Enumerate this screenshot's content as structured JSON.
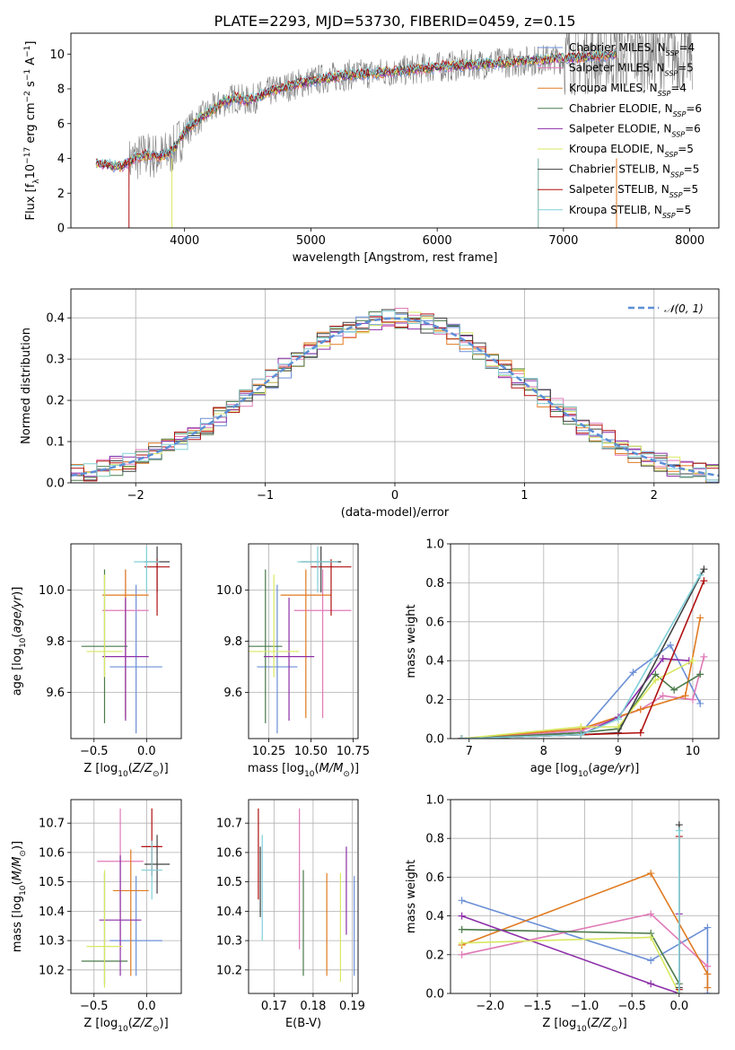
{
  "title": "PLATE=2293, MJD=53730, FIBERID=0459, z=0.15",
  "colors": {
    "chabrier_miles": "#6b8fd6",
    "salpeter_miles": "#e07ab8",
    "kroupa_miles": "#e07a20",
    "chabrier_elodie": "#4a7a4a",
    "salpeter_elodie": "#8c2fa8",
    "kroupa_elodie": "#d8e860",
    "chabrier_stelib": "#404040",
    "salpeter_stelib": "#b01010",
    "kroupa_stelib": "#80d0d8",
    "normal": "#5b8fd6",
    "observed": "#808080"
  },
  "chart_data": [
    {
      "id": "spectrum",
      "type": "line",
      "title": "PLATE=2293, MJD=53730, FIBERID=0459, z=0.15",
      "xlabel": "wavelength [Angstrom, rest frame]",
      "ylabel": "Flux [f_λ10^-17 erg cm^-2 s^-1 A^-1]",
      "xlim": [
        3100,
        8230
      ],
      "ylim": [
        0,
        11.2
      ],
      "xticks": [
        4000,
        5000,
        6000,
        7000,
        8000
      ],
      "yticks": [
        0,
        2,
        4,
        6,
        8,
        10
      ],
      "grid": false,
      "legend_position": "top-right",
      "model_points": {
        "x": [
          3300,
          3400,
          3500,
          3600,
          3700,
          3800,
          3900,
          4000,
          4100,
          4200,
          4300,
          4400,
          4500,
          4700,
          4900,
          5100,
          5300,
          5500,
          5700,
          5900,
          6100,
          6300,
          6500,
          6700,
          6900,
          7100,
          7300,
          7420
        ],
        "y": [
          3.7,
          3.6,
          3.5,
          4.0,
          4.2,
          4.1,
          4.4,
          5.5,
          6.2,
          6.7,
          7.2,
          7.5,
          7.3,
          7.9,
          8.3,
          8.6,
          8.8,
          8.9,
          9.0,
          9.2,
          9.3,
          9.4,
          9.5,
          9.6,
          9.7,
          9.8,
          9.9,
          10.0
        ]
      },
      "observed_range": {
        "x": [
          3560,
          8020
        ]
      },
      "series": [
        {
          "name": "Chabrier MILES, N_SSP=4",
          "key": "chabrier_miles"
        },
        {
          "name": "Salpeter MILES, N_SSP=5",
          "key": "salpeter_miles"
        },
        {
          "name": "Kroupa MILES, N_SSP=4",
          "key": "kroupa_miles"
        },
        {
          "name": "Chabrier ELODIE, N_SSP=6",
          "key": "chabrier_elodie"
        },
        {
          "name": "Salpeter ELODIE, N_SSP=6",
          "key": "salpeter_elodie"
        },
        {
          "name": "Kroupa ELODIE, N_SSP=5",
          "key": "kroupa_elodie"
        },
        {
          "name": "Chabrier STELIB, N_SSP=5",
          "key": "chabrier_stelib"
        },
        {
          "name": "Salpeter STELIB, N_SSP=5",
          "key": "salpeter_stelib"
        },
        {
          "name": "Kroupa STELIB, N_SSP=5",
          "key": "kroupa_stelib"
        }
      ]
    },
    {
      "id": "residuals",
      "type": "line",
      "xlabel": "(data-model)/error",
      "ylabel": "Normed distribution",
      "xlim": [
        -2.5,
        2.5
      ],
      "ylim": [
        0,
        0.47
      ],
      "xticks": [
        -2,
        -1,
        0,
        1,
        2
      ],
      "yticks": [
        0.0,
        0.1,
        0.2,
        0.3,
        0.4
      ],
      "grid": true,
      "legend_position": "top-right",
      "legend_label": "𝒩(0, 1)",
      "histogram_bin_width": 0.1
    },
    {
      "id": "age_vs_Z",
      "type": "scatter",
      "xlabel": "Z [log10(Z/Z⊙)]",
      "ylabel": "age  [log10(age/yr)]",
      "xlim": [
        -0.72,
        0.33
      ],
      "ylim": [
        9.42,
        10.18
      ],
      "xticks": [
        -0.5,
        0.0
      ],
      "yticks": [
        9.6,
        9.8,
        10.0
      ],
      "grid": true,
      "points": [
        {
          "key": "chabrier_miles",
          "x": -0.1,
          "xerr": [
            0.25,
            0.25
          ],
          "y": 9.7,
          "yerr": [
            0.26,
            0.32
          ]
        },
        {
          "key": "salpeter_miles",
          "x": -0.2,
          "xerr": [
            0.22,
            0.22
          ],
          "y": 9.92,
          "yerr": [
            0.42,
            0.16
          ]
        },
        {
          "key": "kroupa_miles",
          "x": -0.2,
          "xerr": [
            0.22,
            0.22
          ],
          "y": 9.98,
          "yerr": [
            0.48,
            0.1
          ]
        },
        {
          "key": "chabrier_elodie",
          "x": -0.4,
          "xerr": [
            0.22,
            0.22
          ],
          "y": 9.78,
          "yerr": [
            0.3,
            0.3
          ]
        },
        {
          "key": "salpeter_elodie",
          "x": -0.2,
          "xerr": [
            0.22,
            0.22
          ],
          "y": 9.74,
          "yerr": [
            0.25,
            0.23
          ]
        },
        {
          "key": "kroupa_elodie",
          "x": -0.4,
          "xerr": [
            0.17,
            0.17
          ],
          "y": 9.76,
          "yerr": [
            0.1,
            0.3
          ]
        },
        {
          "key": "chabrier_stelib",
          "x": 0.1,
          "xerr": [
            0.12,
            0.12
          ],
          "y": 10.11,
          "yerr": [
            0.12,
            0.06
          ]
        },
        {
          "key": "salpeter_stelib",
          "x": 0.1,
          "xerr": [
            0.12,
            0.12
          ],
          "y": 10.09,
          "yerr": [
            0.19,
            0.03
          ]
        },
        {
          "key": "kroupa_stelib",
          "x": 0.0,
          "xerr": [
            0.12,
            0.12
          ],
          "y": 10.11,
          "yerr": [
            0.12,
            0.06
          ]
        }
      ]
    },
    {
      "id": "age_vs_mass",
      "type": "scatter",
      "xlabel": "mass [log10(M/M⊙)]",
      "ylabel": "",
      "xlim": [
        10.13,
        10.78
      ],
      "ylim": [
        9.42,
        10.18
      ],
      "xticks": [
        10.25,
        10.5,
        10.75
      ],
      "yticks": [
        9.6,
        9.8,
        10.0
      ],
      "grid": true,
      "points": [
        {
          "key": "chabrier_miles",
          "x": 10.3,
          "xerr": [
            0.12,
            0.12
          ],
          "y": 9.7,
          "yerr": [
            0.26,
            0.32
          ]
        },
        {
          "key": "salpeter_miles",
          "x": 10.57,
          "xerr": [
            0.17,
            0.17
          ],
          "y": 9.92,
          "yerr": [
            0.42,
            0.16
          ]
        },
        {
          "key": "kroupa_miles",
          "x": 10.47,
          "xerr": [
            0.15,
            0.15
          ],
          "y": 9.98,
          "yerr": [
            0.48,
            0.1
          ]
        },
        {
          "key": "chabrier_elodie",
          "x": 10.23,
          "xerr": [
            0.1,
            0.1
          ],
          "y": 9.78,
          "yerr": [
            0.3,
            0.3
          ]
        },
        {
          "key": "salpeter_elodie",
          "x": 10.37,
          "xerr": [
            0.15,
            0.15
          ],
          "y": 9.74,
          "yerr": [
            0.25,
            0.23
          ]
        },
        {
          "key": "kroupa_elodie",
          "x": 10.28,
          "xerr": [
            0.15,
            0.15
          ],
          "y": 9.76,
          "yerr": [
            0.1,
            0.3
          ]
        },
        {
          "key": "chabrier_stelib",
          "x": 10.56,
          "xerr": [
            0.12,
            0.12
          ],
          "y": 10.11,
          "yerr": [
            0.12,
            0.06
          ]
        },
        {
          "key": "salpeter_stelib",
          "x": 10.62,
          "xerr": [
            0.12,
            0.12
          ],
          "y": 10.09,
          "yerr": [
            0.19,
            0.03
          ]
        },
        {
          "key": "kroupa_stelib",
          "x": 10.54,
          "xerr": [
            0.12,
            0.12
          ],
          "y": 10.11,
          "yerr": [
            0.12,
            0.06
          ]
        }
      ]
    },
    {
      "id": "weight_vs_age",
      "type": "line",
      "xlabel": "age  [log10(age/yr)]",
      "ylabel": "mass weight",
      "xlim": [
        6.75,
        10.35
      ],
      "ylim": [
        0,
        1.0
      ],
      "xticks": [
        7,
        8,
        9,
        10
      ],
      "yticks": [
        0.0,
        0.2,
        0.4,
        0.6,
        0.8,
        1.0
      ],
      "grid": true,
      "series": [
        {
          "key": "chabrier_miles",
          "x": [
            6.9,
            8.5,
            9.2,
            9.7,
            10.1
          ],
          "y": [
            0.0,
            0.03,
            0.34,
            0.48,
            0.18
          ]
        },
        {
          "key": "salpeter_miles",
          "x": [
            6.9,
            8.5,
            9.3,
            9.6,
            10.0,
            10.15
          ],
          "y": [
            0.0,
            0.04,
            0.15,
            0.22,
            0.2,
            0.42
          ]
        },
        {
          "key": "kroupa_miles",
          "x": [
            6.9,
            8.5,
            9.3,
            9.9,
            10.1
          ],
          "y": [
            0.0,
            0.05,
            0.15,
            0.22,
            0.62
          ]
        },
        {
          "key": "chabrier_elodie",
          "x": [
            6.9,
            8.5,
            9.0,
            9.5,
            9.75,
            10.1
          ],
          "y": [
            0.0,
            0.03,
            0.05,
            0.33,
            0.25,
            0.33
          ]
        },
        {
          "key": "salpeter_elodie",
          "x": [
            6.9,
            8.5,
            9.0,
            9.6,
            9.95
          ],
          "y": [
            0.0,
            0.02,
            0.11,
            0.41,
            0.4
          ]
        },
        {
          "key": "kroupa_elodie",
          "x": [
            6.9,
            8.5,
            9.0,
            9.5,
            10.0
          ],
          "y": [
            0.0,
            0.06,
            0.06,
            0.3,
            0.4
          ]
        },
        {
          "key": "chabrier_stelib",
          "x": [
            6.9,
            8.5,
            9.0,
            10.15
          ],
          "y": [
            0.0,
            0.02,
            0.03,
            0.87
          ]
        },
        {
          "key": "salpeter_stelib",
          "x": [
            6.9,
            8.5,
            9.3,
            10.15
          ],
          "y": [
            0.0,
            0.02,
            0.03,
            0.81
          ]
        },
        {
          "key": "kroupa_stelib",
          "x": [
            6.9,
            8.5,
            9.0,
            10.1
          ],
          "y": [
            0.0,
            0.02,
            0.1,
            0.84
          ]
        }
      ]
    },
    {
      "id": "mass_vs_Z",
      "type": "scatter",
      "xlabel": "Z [log10(Z/Z⊙)]",
      "ylabel": "mass [log10(M/M⊙)]",
      "xlim": [
        -0.72,
        0.33
      ],
      "ylim": [
        10.12,
        10.78
      ],
      "xticks": [
        -0.5,
        0.0
      ],
      "yticks": [
        10.2,
        10.3,
        10.4,
        10.5,
        10.6,
        10.7
      ],
      "grid": true,
      "points": [
        {
          "key": "chabrier_miles",
          "x": -0.1,
          "xerr": [
            0.25,
            0.25
          ],
          "y": 10.3,
          "yerr": [
            0.12,
            0.22
          ]
        },
        {
          "key": "salpeter_miles",
          "x": -0.25,
          "xerr": [
            0.22,
            0.22
          ],
          "y": 10.57,
          "yerr": [
            0.3,
            0.18
          ]
        },
        {
          "key": "kroupa_miles",
          "x": -0.15,
          "xerr": [
            0.17,
            0.17
          ],
          "y": 10.47,
          "yerr": [
            0.29,
            0.14
          ]
        },
        {
          "key": "chabrier_elodie",
          "x": -0.4,
          "xerr": [
            0.22,
            0.22
          ],
          "y": 10.23,
          "yerr": [
            0.08,
            0.3
          ]
        },
        {
          "key": "salpeter_elodie",
          "x": -0.25,
          "xerr": [
            0.2,
            0.2
          ],
          "y": 10.37,
          "yerr": [
            0.19,
            0.22
          ]
        },
        {
          "key": "kroupa_elodie",
          "x": -0.4,
          "xerr": [
            0.17,
            0.17
          ],
          "y": 10.28,
          "yerr": [
            0.14,
            0.26
          ]
        },
        {
          "key": "chabrier_stelib",
          "x": 0.1,
          "xerr": [
            0.12,
            0.12
          ],
          "y": 10.56,
          "yerr": [
            0.1,
            0.1
          ]
        },
        {
          "key": "salpeter_stelib",
          "x": 0.05,
          "xerr": [
            0.1,
            0.1
          ],
          "y": 10.62,
          "yerr": [
            0.1,
            0.13
          ]
        },
        {
          "key": "kroupa_stelib",
          "x": 0.05,
          "xerr": [
            0.1,
            0.1
          ],
          "y": 10.54,
          "yerr": [
            0.1,
            0.1
          ]
        }
      ]
    },
    {
      "id": "mass_vs_ebv",
      "type": "scatter",
      "xlabel": "E(B-V)",
      "ylabel": "",
      "xlim": [
        0.1635,
        0.1915
      ],
      "ylim": [
        10.12,
        10.78
      ],
      "xticks": [
        0.17,
        0.18,
        0.19
      ],
      "yticks": [
        10.2,
        10.3,
        10.4,
        10.5,
        10.6,
        10.7
      ],
      "grid": true,
      "points": [
        {
          "key": "chabrier_miles",
          "x": 0.1905,
          "y": 10.3,
          "yerr": [
            0.12,
            0.22
          ]
        },
        {
          "key": "salpeter_miles",
          "x": 0.1765,
          "y": 10.57,
          "yerr": [
            0.3,
            0.18
          ]
        },
        {
          "key": "kroupa_miles",
          "x": 0.1835,
          "y": 10.47,
          "yerr": [
            0.29,
            0.06
          ]
        },
        {
          "key": "chabrier_elodie",
          "x": 0.1775,
          "y": 10.36,
          "yerr": [
            0.18,
            0.18
          ]
        },
        {
          "key": "salpeter_elodie",
          "x": 0.1885,
          "y": 10.52,
          "yerr": [
            0.2,
            0.1
          ]
        },
        {
          "key": "kroupa_elodie",
          "x": 0.187,
          "y": 10.36,
          "yerr": [
            0.2,
            0.17
          ]
        },
        {
          "key": "chabrier_stelib",
          "x": 0.1665,
          "y": 10.5,
          "yerr": [
            0.12,
            0.12
          ]
        },
        {
          "key": "salpeter_stelib",
          "x": 0.166,
          "y": 10.55,
          "yerr": [
            0.11,
            0.2
          ]
        },
        {
          "key": "kroupa_stelib",
          "x": 0.167,
          "y": 10.48,
          "yerr": [
            0.18,
            0.18
          ]
        }
      ]
    },
    {
      "id": "weight_vs_Z",
      "type": "line",
      "xlabel": "Z [log10(Z/Z⊙)]",
      "ylabel": "mass weight",
      "xlim": [
        -2.42,
        0.42
      ],
      "ylim": [
        0,
        1.0
      ],
      "xticks": [
        -2.0,
        -1.5,
        -1.0,
        -0.5,
        0.0
      ],
      "yticks": [
        0.0,
        0.2,
        0.4,
        0.6,
        0.8,
        1.0
      ],
      "grid": true,
      "series": [
        {
          "key": "chabrier_miles",
          "x": [
            -2.3,
            -0.3,
            0.3,
            0.3
          ],
          "y": [
            0.48,
            0.17,
            0.34,
            0.0
          ]
        },
        {
          "key": "salpeter_miles",
          "x": [
            -2.3,
            -0.3,
            0.3
          ],
          "y": [
            0.2,
            0.41,
            0.14
          ]
        },
        {
          "key": "kroupa_miles",
          "x": [
            -2.3,
            -0.3,
            0.3,
            0.3
          ],
          "y": [
            0.25,
            0.62,
            0.1,
            0.03
          ]
        },
        {
          "key": "chabrier_elodie",
          "x": [
            -2.3,
            -0.3,
            0.0,
            0.0
          ],
          "y": [
            0.33,
            0.31,
            0.05,
            0.0
          ]
        },
        {
          "key": "salpeter_elodie",
          "x": [
            -2.3,
            -0.3,
            0.0,
            0.0
          ],
          "y": [
            0.4,
            0.05,
            0.0,
            0.41
          ]
        },
        {
          "key": "kroupa_elodie",
          "x": [
            -2.3,
            -0.3,
            0.0
          ],
          "y": [
            0.26,
            0.29,
            0.0
          ]
        },
        {
          "key": "chabrier_stelib",
          "x": [
            0.0,
            0.0
          ],
          "y": [
            0.03,
            0.87
          ]
        },
        {
          "key": "salpeter_stelib",
          "x": [
            0.0,
            0.0
          ],
          "y": [
            0.02,
            0.81
          ]
        },
        {
          "key": "kroupa_stelib",
          "x": [
            0.0,
            0.0
          ],
          "y": [
            0.0,
            0.84
          ]
        }
      ]
    }
  ]
}
